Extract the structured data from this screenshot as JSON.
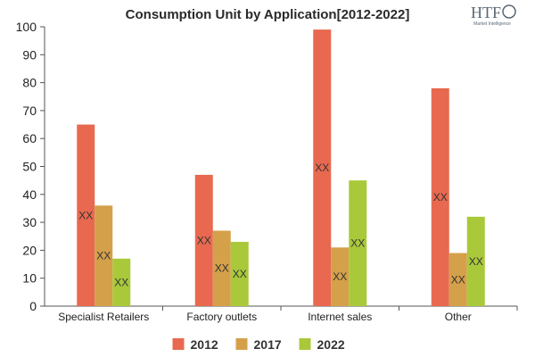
{
  "logo": {
    "brand": "HTF",
    "tagline": "Market Intelligence"
  },
  "chart_data": {
    "type": "bar",
    "title": "Consumption Unit by  Application[2012-2022]",
    "xlabel": "",
    "ylabel": "",
    "ylim": [
      0,
      100
    ],
    "yticks": [
      0,
      10,
      20,
      30,
      40,
      50,
      60,
      70,
      80,
      90,
      100
    ],
    "grid": false,
    "legend": "bottom",
    "categories": [
      "Specialist Retailers",
      "Factory outlets",
      "Internet sales",
      "Other"
    ],
    "series": [
      {
        "name": "2012",
        "color": "#e8694f",
        "values": [
          65,
          47,
          99,
          78
        ],
        "labels": [
          "XX",
          "XX",
          "XX",
          "XX"
        ]
      },
      {
        "name": "2017",
        "color": "#d4a04a",
        "values": [
          36,
          27,
          21,
          19
        ],
        "labels": [
          "XX",
          "XX",
          "XX",
          "XX"
        ]
      },
      {
        "name": "2022",
        "color": "#a9c93a",
        "values": [
          17,
          23,
          45,
          32
        ],
        "labels": [
          "XX",
          "XX",
          "XX",
          "XX"
        ]
      }
    ]
  }
}
